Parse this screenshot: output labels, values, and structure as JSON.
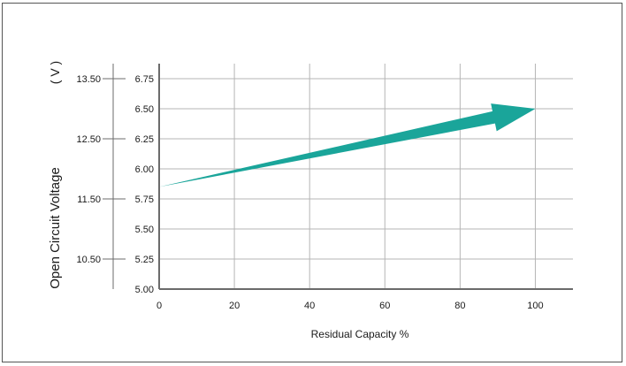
{
  "chart_data": {
    "type": "line",
    "title": "",
    "xlabel": "Residual Capacity %",
    "ylabel": "Open Circuit Voltage",
    "ylabel_unit": "( V )",
    "xlim": [
      0,
      110
    ],
    "x_ticks": [
      "0",
      "20",
      "40",
      "60",
      "80",
      "100"
    ],
    "ylim": [
      5.0,
      6.875
    ],
    "y_ticks": [
      "5.00",
      "5.25",
      "5.50",
      "5.75",
      "6.00",
      "6.25",
      "6.50",
      "6.75"
    ],
    "y2_ticks": [
      {
        "label": "10.50",
        "at": 5.25
      },
      {
        "label": "11.50",
        "at": 5.75
      },
      {
        "label": "12.50",
        "at": 6.25
      },
      {
        "label": "13.50",
        "at": 6.75
      }
    ],
    "grid": true,
    "series": [
      {
        "x": [
          0,
          100
        ],
        "y": [
          5.85,
          6.5
        ]
      }
    ],
    "style": {
      "arrow_color": "#1aa59a",
      "grid_color": "#b5b5b5",
      "axis_color": "#6b6b6b"
    }
  }
}
